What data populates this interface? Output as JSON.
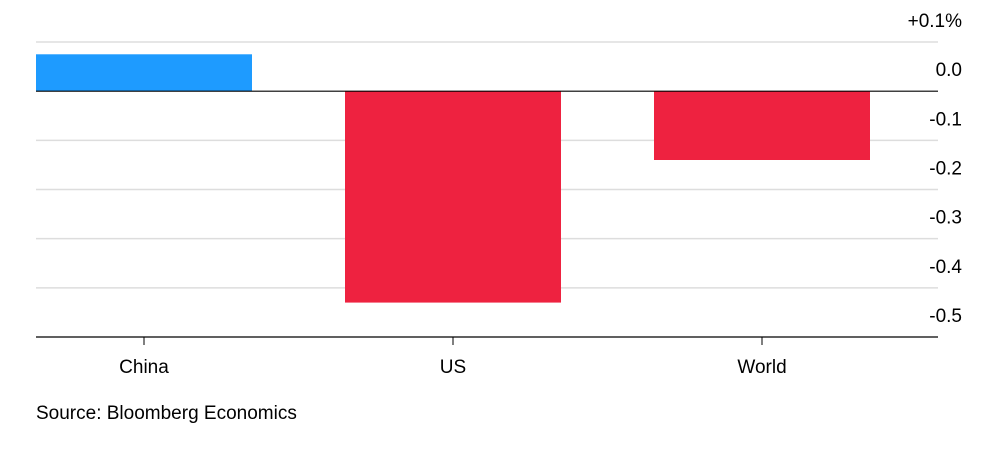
{
  "chart_data": {
    "type": "bar",
    "categories": [
      "China",
      "US",
      "World"
    ],
    "values": [
      0.075,
      -0.43,
      -0.14
    ],
    "colors": [
      "#1e9bff",
      "#ee2240",
      "#ee2240"
    ],
    "ylim": [
      -0.5,
      0.1
    ],
    "yticks": [
      {
        "value": 0.1,
        "label": "+0.1%"
      },
      {
        "value": 0,
        "label": "0.0"
      },
      -0.1,
      -0.2,
      -0.3,
      -0.4,
      -0.5
    ],
    "grid": true,
    "source": "Source: Bloomberg Economics"
  }
}
